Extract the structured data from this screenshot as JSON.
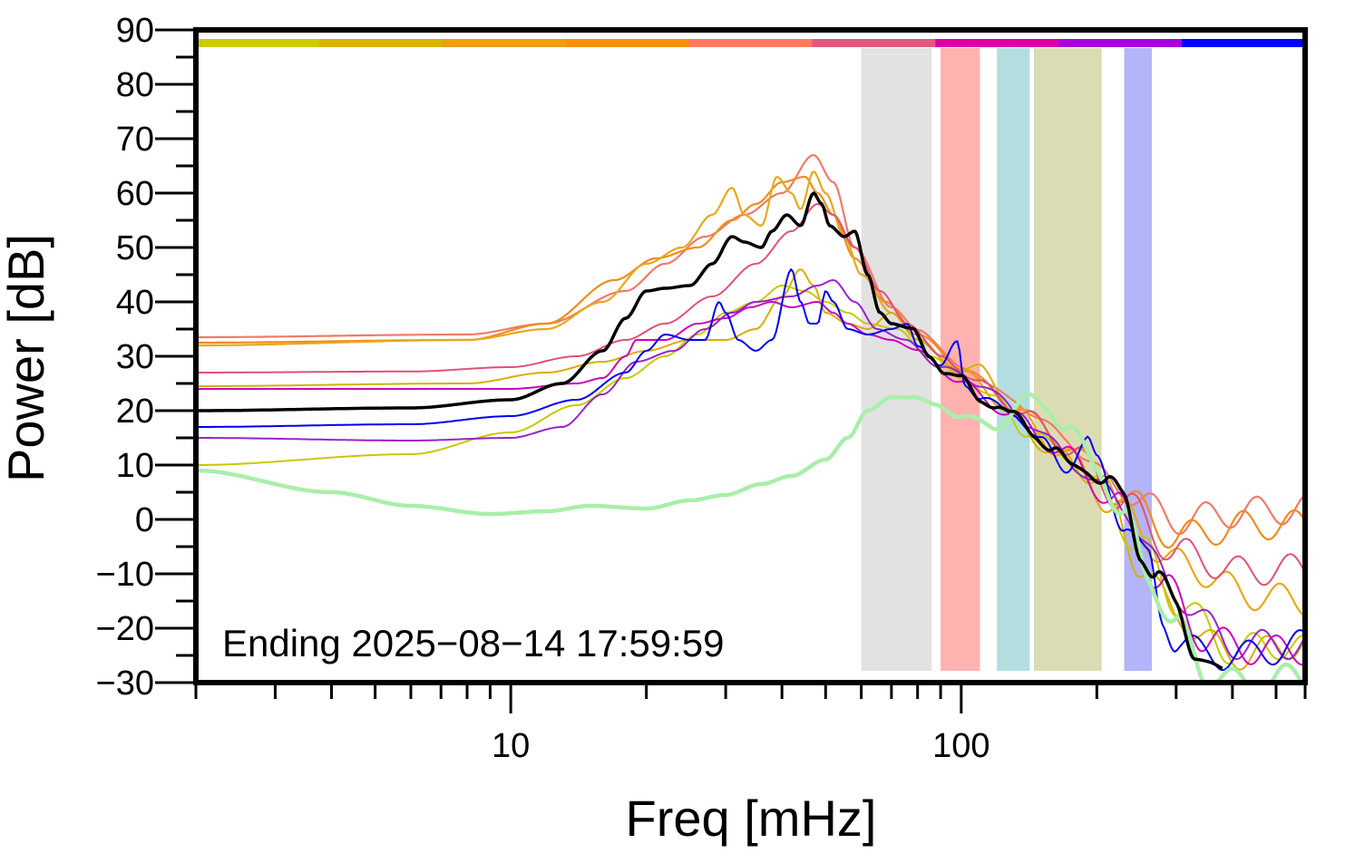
{
  "chart_data": {
    "type": "line",
    "title": "",
    "xlabel": "Freq [mHz]",
    "ylabel": "Power [dB]",
    "xscale": "log",
    "xlim": [
      2,
      580
    ],
    "ylim": [
      -30,
      90
    ],
    "xticks": [
      10,
      100
    ],
    "yticks": [
      -30,
      -20,
      -10,
      0,
      10,
      20,
      30,
      40,
      50,
      60,
      70,
      80,
      90
    ],
    "annotation": "Ending 2025−08−14 17:59:59",
    "legend": "none",
    "grid": false,
    "band_strip": [
      "#cccc00",
      "#d9b300",
      "#ee9f0f",
      "#f5900a",
      "#fa7a60",
      "#e05a80",
      "#dd00aa",
      "#aa00dd",
      "#0000ff"
    ],
    "shaded_bands": [
      {
        "from": 60,
        "to": 86,
        "color": "#e2e2e2"
      },
      {
        "from": 90,
        "to": 110,
        "color": "#ffb3b0"
      },
      {
        "from": 120,
        "to": 142,
        "color": "#b4dde0"
      },
      {
        "from": 145,
        "to": 205,
        "color": "#dcdcb4"
      },
      {
        "from": 230,
        "to": 265,
        "color": "#b4b4f8"
      }
    ],
    "series": [
      {
        "color": "#f07a6a",
        "width": 2.2,
        "points": [
          [
            2,
            33.5
          ],
          [
            8,
            34
          ],
          [
            12,
            36
          ],
          [
            18,
            42
          ],
          [
            22,
            47
          ],
          [
            27,
            52
          ],
          [
            33,
            56
          ],
          [
            40,
            60
          ],
          [
            47,
            67
          ],
          [
            52,
            62
          ],
          [
            58,
            50
          ],
          [
            70,
            39
          ],
          [
            80,
            35
          ],
          [
            100,
            28
          ],
          [
            130,
            22
          ],
          [
            170,
            15
          ],
          [
            220,
            6
          ],
          [
            300,
            0
          ],
          [
            450,
            1.5
          ],
          [
            580,
            2
          ]
        ]
      },
      {
        "color": "#f08c1e",
        "width": 2.2,
        "points": [
          [
            2,
            32.5
          ],
          [
            8,
            33
          ],
          [
            12,
            36
          ],
          [
            17,
            44
          ],
          [
            21,
            48
          ],
          [
            26,
            50
          ],
          [
            31,
            55
          ],
          [
            35,
            58
          ],
          [
            40,
            62
          ],
          [
            45,
            63
          ],
          [
            48,
            60
          ],
          [
            52,
            56
          ],
          [
            58,
            48
          ],
          [
            68,
            40
          ],
          [
            80,
            34
          ],
          [
            100,
            28
          ],
          [
            130,
            21
          ],
          [
            170,
            14
          ],
          [
            220,
            5
          ],
          [
            300,
            -3
          ],
          [
            450,
            -1
          ],
          [
            580,
            -1
          ]
        ]
      },
      {
        "color": "#e8a81a",
        "width": 2.2,
        "points": [
          [
            2,
            32
          ],
          [
            8,
            33
          ],
          [
            12,
            35
          ],
          [
            16,
            40
          ],
          [
            20,
            47
          ],
          [
            24,
            50
          ],
          [
            28,
            56
          ],
          [
            31,
            61
          ],
          [
            33,
            56
          ],
          [
            36,
            54
          ],
          [
            39,
            63
          ],
          [
            42,
            60
          ],
          [
            44,
            57
          ],
          [
            47,
            64
          ],
          [
            50,
            60
          ],
          [
            55,
            52
          ],
          [
            60,
            45
          ],
          [
            70,
            38
          ],
          [
            80,
            33
          ],
          [
            100,
            27
          ],
          [
            130,
            20
          ],
          [
            170,
            12
          ],
          [
            220,
            2
          ],
          [
            300,
            -8
          ],
          [
            450,
            -14
          ],
          [
            580,
            -15
          ]
        ]
      },
      {
        "color": "#d5b000",
        "width": 2.0,
        "points": [
          [
            2,
            24.5
          ],
          [
            8,
            25
          ],
          [
            12,
            27
          ],
          [
            16,
            29
          ],
          [
            20,
            31
          ],
          [
            25,
            33
          ],
          [
            30,
            33
          ],
          [
            35,
            35
          ],
          [
            40,
            41
          ],
          [
            44,
            46
          ],
          [
            47,
            43
          ],
          [
            50,
            38
          ],
          [
            56,
            36
          ],
          [
            62,
            35
          ],
          [
            70,
            38
          ],
          [
            80,
            33
          ],
          [
            100,
            27
          ],
          [
            110,
            29
          ],
          [
            130,
            19
          ],
          [
            160,
            12
          ],
          [
            200,
            8
          ],
          [
            250,
            -8
          ],
          [
            300,
            -18
          ],
          [
            400,
            -25
          ],
          [
            500,
            -24
          ],
          [
            580,
            -22
          ]
        ]
      },
      {
        "color": "#c8c800",
        "width": 2.0,
        "points": [
          [
            2,
            10
          ],
          [
            6,
            12
          ],
          [
            10,
            16
          ],
          [
            14,
            21
          ],
          [
            18,
            26
          ],
          [
            22,
            30
          ],
          [
            26,
            34
          ],
          [
            30,
            38
          ],
          [
            35,
            40
          ],
          [
            40,
            43
          ],
          [
            45,
            42
          ],
          [
            50,
            40
          ],
          [
            56,
            38
          ],
          [
            62,
            36
          ],
          [
            72,
            35
          ],
          [
            85,
            30
          ],
          [
            100,
            26
          ],
          [
            120,
            22
          ],
          [
            140,
            16
          ],
          [
            170,
            12
          ],
          [
            200,
            6
          ],
          [
            250,
            -5
          ],
          [
            300,
            -15
          ],
          [
            400,
            -24
          ],
          [
            500,
            -23
          ],
          [
            580,
            -24
          ]
        ]
      },
      {
        "color": "#e0507a",
        "width": 2.0,
        "points": [
          [
            2,
            27
          ],
          [
            6,
            27.2
          ],
          [
            10,
            28
          ],
          [
            14,
            30
          ],
          [
            18,
            33
          ],
          [
            22,
            36
          ],
          [
            28,
            41
          ],
          [
            35,
            47
          ],
          [
            42,
            53
          ],
          [
            48,
            58
          ],
          [
            52,
            56
          ],
          [
            58,
            50
          ],
          [
            66,
            42
          ],
          [
            76,
            36
          ],
          [
            90,
            30
          ],
          [
            110,
            25
          ],
          [
            140,
            19
          ],
          [
            180,
            12
          ],
          [
            230,
            3
          ],
          [
            300,
            -6
          ],
          [
            420,
            -9.5
          ],
          [
            580,
            -9
          ]
        ]
      },
      {
        "color": "#cc00bb",
        "width": 2.0,
        "points": [
          [
            2,
            24
          ],
          [
            6,
            24
          ],
          [
            10,
            24
          ],
          [
            14,
            25
          ],
          [
            16,
            26
          ],
          [
            18,
            30
          ],
          [
            19,
            33
          ],
          [
            22,
            33
          ],
          [
            26,
            36
          ],
          [
            30,
            37
          ],
          [
            34,
            39
          ],
          [
            38,
            40
          ],
          [
            42,
            39
          ],
          [
            48,
            40
          ],
          [
            52,
            38
          ],
          [
            56,
            36
          ],
          [
            62,
            34
          ],
          [
            70,
            33
          ],
          [
            80,
            31
          ],
          [
            100,
            25
          ],
          [
            130,
            19
          ],
          [
            170,
            12
          ],
          [
            220,
            3
          ],
          [
            280,
            -12
          ],
          [
            350,
            -22
          ],
          [
            450,
            -24
          ],
          [
            580,
            -24
          ]
        ]
      },
      {
        "color": "#9922cc",
        "width": 2.0,
        "points": [
          [
            2,
            15
          ],
          [
            6,
            14.5
          ],
          [
            10,
            15
          ],
          [
            13,
            17
          ],
          [
            16,
            23
          ],
          [
            19,
            29
          ],
          [
            23,
            31
          ],
          [
            27,
            35
          ],
          [
            31,
            38
          ],
          [
            35,
            40
          ],
          [
            42,
            41
          ],
          [
            48,
            43
          ],
          [
            52,
            44
          ],
          [
            58,
            40
          ],
          [
            65,
            35
          ],
          [
            75,
            33
          ],
          [
            90,
            28
          ],
          [
            110,
            25
          ],
          [
            140,
            18
          ],
          [
            180,
            10
          ],
          [
            230,
            2
          ],
          [
            300,
            -14
          ],
          [
            400,
            -23
          ],
          [
            580,
            -23
          ]
        ]
      },
      {
        "color": "#0000ee",
        "width": 2.0,
        "points": [
          [
            2,
            17
          ],
          [
            6,
            17.5
          ],
          [
            10,
            19
          ],
          [
            14,
            22
          ],
          [
            18,
            27
          ],
          [
            20,
            31
          ],
          [
            22,
            34
          ],
          [
            25,
            33
          ],
          [
            27,
            33
          ],
          [
            29,
            40
          ],
          [
            30,
            38
          ],
          [
            32,
            33
          ],
          [
            35,
            31
          ],
          [
            38,
            33
          ],
          [
            42,
            46
          ],
          [
            44,
            40
          ],
          [
            46,
            36
          ],
          [
            48,
            36
          ],
          [
            50,
            42
          ],
          [
            52,
            40
          ],
          [
            56,
            35
          ],
          [
            62,
            34
          ],
          [
            70,
            35
          ],
          [
            76,
            36
          ],
          [
            80,
            32
          ],
          [
            90,
            28
          ],
          [
            98,
            33
          ],
          [
            102,
            25
          ],
          [
            110,
            22
          ],
          [
            130,
            20
          ],
          [
            150,
            14
          ],
          [
            170,
            10
          ],
          [
            190,
            14
          ],
          [
            200,
            10
          ],
          [
            230,
            0
          ],
          [
            260,
            -8
          ],
          [
            280,
            -18
          ],
          [
            300,
            -22
          ],
          [
            350,
            -25
          ],
          [
            420,
            -25
          ],
          [
            580,
            -23
          ]
        ]
      },
      {
        "color": "#aaeeaa",
        "width": 4.5,
        "points": [
          [
            2,
            9
          ],
          [
            4,
            5
          ],
          [
            6,
            2.5
          ],
          [
            9,
            1
          ],
          [
            12,
            1.5
          ],
          [
            15,
            2.5
          ],
          [
            20,
            2
          ],
          [
            25,
            3.5
          ],
          [
            30,
            4.5
          ],
          [
            36,
            6.5
          ],
          [
            42,
            8
          ],
          [
            50,
            11
          ],
          [
            56,
            15
          ],
          [
            62,
            20
          ],
          [
            70,
            22.5
          ],
          [
            78,
            22.5
          ],
          [
            88,
            21
          ],
          [
            100,
            19
          ],
          [
            118,
            17
          ],
          [
            140,
            22
          ],
          [
            155,
            21
          ],
          [
            170,
            17
          ],
          [
            200,
            10
          ],
          [
            230,
            0
          ],
          [
            260,
            -10
          ],
          [
            300,
            -20
          ],
          [
            350,
            -28
          ],
          [
            420,
            -30.5
          ],
          [
            500,
            -29.5
          ],
          [
            580,
            -29
          ]
        ]
      },
      {
        "color": "#000000",
        "width": 3.5,
        "points": [
          [
            2,
            20
          ],
          [
            6,
            20.5
          ],
          [
            10,
            22
          ],
          [
            13,
            25
          ],
          [
            16,
            31
          ],
          [
            18,
            37
          ],
          [
            20,
            42
          ],
          [
            22,
            42.5
          ],
          [
            25,
            43
          ],
          [
            28,
            47
          ],
          [
            31,
            52
          ],
          [
            33,
            51
          ],
          [
            36,
            50
          ],
          [
            38,
            53
          ],
          [
            41,
            56
          ],
          [
            44,
            54
          ],
          [
            47,
            60
          ],
          [
            49,
            58
          ],
          [
            51,
            54
          ],
          [
            55,
            52
          ],
          [
            58,
            53
          ],
          [
            62,
            45
          ],
          [
            66,
            38
          ],
          [
            70,
            36
          ],
          [
            78,
            35
          ],
          [
            85,
            30
          ],
          [
            92,
            27
          ],
          [
            100,
            26
          ],
          [
            110,
            22
          ],
          [
            120,
            21
          ],
          [
            130,
            19
          ],
          [
            145,
            16
          ],
          [
            160,
            13
          ],
          [
            175,
            9
          ],
          [
            190,
            10
          ],
          [
            210,
            7
          ],
          [
            230,
            3
          ],
          [
            250,
            -5
          ],
          [
            270,
            -10
          ],
          [
            300,
            -17
          ],
          [
            330,
            -23
          ],
          [
            380,
            -30
          ]
        ]
      }
    ]
  }
}
